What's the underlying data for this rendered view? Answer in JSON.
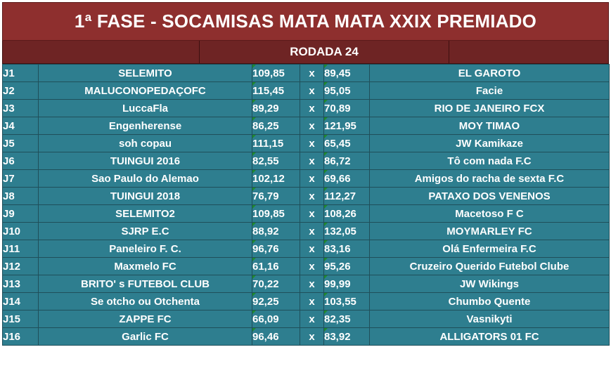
{
  "title": "1ª FASE - SOCAMISAS MATA MATA XXIX PREMIADO",
  "round_label": "RODADA 24",
  "vs_symbol": "x",
  "colors": {
    "title_bg": "#8e2f2e",
    "round_bg": "#6e2424",
    "row_bg": "#2e7e8f",
    "text": "#ffffff"
  },
  "matches": [
    {
      "id": "J1",
      "home": "SELEMITO",
      "home_score": "109,85",
      "away_score": "89,45",
      "away": "EL GAROTO"
    },
    {
      "id": "J2",
      "home": "MALUCONOPEDAÇOFC",
      "home_score": "115,45",
      "away_score": "95,05",
      "away": "Facie"
    },
    {
      "id": "J3",
      "home": "LuccaFla",
      "home_score": "89,29",
      "away_score": "70,89",
      "away": "RIO DE JANEIRO FCX"
    },
    {
      "id": "J4",
      "home": "Engenherense",
      "home_score": "86,25",
      "away_score": "121,95",
      "away": "MOY TIMAO"
    },
    {
      "id": "J5",
      "home": "soh copau",
      "home_score": "111,15",
      "away_score": "65,45",
      "away": "JW Kamikaze"
    },
    {
      "id": "J6",
      "home": "TUINGUI 2016",
      "home_score": "82,55",
      "away_score": "86,72",
      "away": "Tô com nada F.C"
    },
    {
      "id": "J7",
      "home": "Sao Paulo do Alemao",
      "home_score": "102,12",
      "away_score": "69,66",
      "away": "Amigos do racha de sexta F.C"
    },
    {
      "id": "J8",
      "home": "TUINGUI 2018",
      "home_score": "76,79",
      "away_score": "112,27",
      "away": "PATAXO DOS VENENOS"
    },
    {
      "id": "J9",
      "home": "SELEMITO2",
      "home_score": "109,85",
      "away_score": "108,26",
      "away": "Macetoso F C"
    },
    {
      "id": "J10",
      "home": "SJRP E.C",
      "home_score": "88,92",
      "away_score": "132,05",
      "away": "MOYMARLEY FC"
    },
    {
      "id": "J11",
      "home": "Paneleiro F. C.",
      "home_score": "96,76",
      "away_score": "83,16",
      "away": "Olá Enfermeira F.C"
    },
    {
      "id": "J12",
      "home": "Maxmelo FC",
      "home_score": "61,16",
      "away_score": "95,26",
      "away": "Cruzeiro Querido Futebol Clube"
    },
    {
      "id": "J13",
      "home": "BRITO' s FUTEBOL CLUB",
      "home_score": "70,22",
      "away_score": "99,99",
      "away": "JW Wikings"
    },
    {
      "id": "J14",
      "home": "Se otcho ou Otchenta",
      "home_score": "92,25",
      "away_score": "103,55",
      "away": "Chumbo Quente"
    },
    {
      "id": "J15",
      "home": "ZAPPE FC",
      "home_score": "66,09",
      "away_score": "82,35",
      "away": "Vasnikyti"
    },
    {
      "id": "J16",
      "home": "Garlic FC",
      "home_score": "96,46",
      "away_score": "83,92",
      "away": "ALLIGATORS 01 FC"
    }
  ]
}
